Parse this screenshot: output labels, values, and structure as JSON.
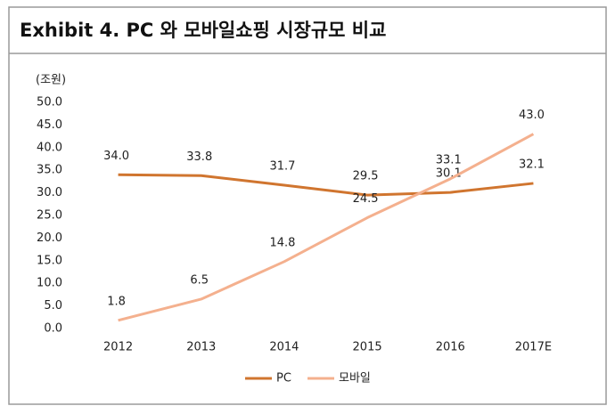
{
  "chart_data": {
    "type": "line",
    "title": "Exhibit 4. PC 와 모바일쇼핑 시장규모 비교",
    "ylabel": "(조원)",
    "categories": [
      "2012",
      "2013",
      "2014",
      "2015",
      "2016",
      "2017E"
    ],
    "series": [
      {
        "name": "PC",
        "color": "#d0752f",
        "values": [
          34.0,
          33.8,
          31.7,
          29.5,
          30.1,
          32.1
        ],
        "value_labels": [
          "34.0",
          "33.8",
          "31.7",
          "29.5",
          "30.1",
          "32.1"
        ]
      },
      {
        "name": "모바일",
        "color": "#f4b08e",
        "values": [
          1.8,
          6.5,
          14.8,
          24.5,
          33.1,
          43.0
        ],
        "value_labels": [
          "1.8",
          "6.5",
          "14.8",
          "24.5",
          "33.1",
          "43.0"
        ]
      }
    ],
    "ylim": [
      0,
      50
    ],
    "yticks": [
      {
        "value": 0,
        "label": "0.0"
      },
      {
        "value": 5,
        "label": "5.0"
      },
      {
        "value": 10,
        "label": "10.0"
      },
      {
        "value": 15,
        "label": "15.0"
      },
      {
        "value": 20,
        "label": "20.0"
      },
      {
        "value": 25,
        "label": "25.0"
      },
      {
        "value": 30,
        "label": "30.0"
      },
      {
        "value": 35,
        "label": "35.0"
      },
      {
        "value": 40,
        "label": "40.0"
      },
      {
        "value": 45,
        "label": "45.0"
      },
      {
        "value": 50,
        "label": "50.0"
      }
    ],
    "grid": false,
    "legend": "bottom"
  }
}
